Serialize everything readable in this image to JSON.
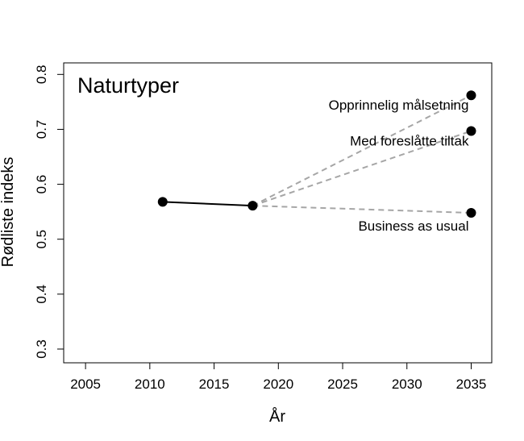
{
  "chart_data": {
    "type": "line",
    "title": "Naturtyper",
    "xlabel": "År",
    "ylabel": "Rødliste indeks",
    "xlim": [
      2003.3,
      2036.6
    ],
    "ylim": [
      0.275,
      0.821
    ],
    "x_ticks": [
      2005,
      2010,
      2015,
      2020,
      2025,
      2030,
      2035
    ],
    "y_ticks": [
      0.3,
      0.4,
      0.5,
      0.6,
      0.7,
      0.8
    ],
    "grid": false,
    "series": [
      {
        "points": [
          [
            2011,
            0.568
          ],
          [
            2018,
            0.561
          ]
        ],
        "style": "solid",
        "color": "#000000"
      }
    ],
    "projections": [
      {
        "label": "Opprinnelig målsetning",
        "from": [
          2018,
          0.561
        ],
        "to": [
          2035,
          0.762
        ],
        "color": "#a6a6a6"
      },
      {
        "label": "Med foreslåtte tiltak",
        "from": [
          2018,
          0.561
        ],
        "to": [
          2035,
          0.697
        ],
        "color": "#a6a6a6"
      },
      {
        "label": "Business as usual",
        "from": [
          2018,
          0.561
        ],
        "to": [
          2035,
          0.548
        ],
        "color": "#a6a6a6"
      }
    ]
  }
}
